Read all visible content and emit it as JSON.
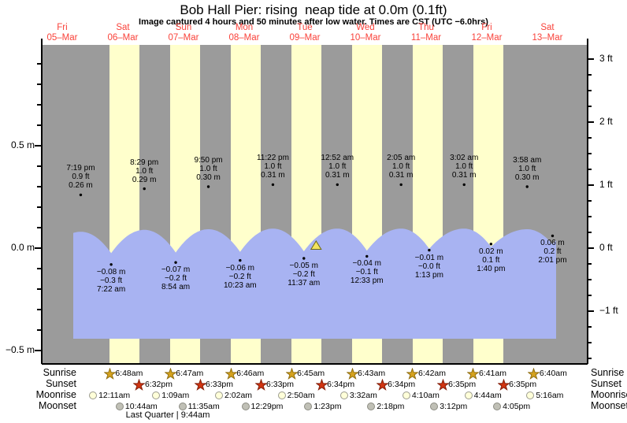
{
  "header": {
    "title": "Bob Hall Pier: rising  neap tide at 0.0m (0.1ft)",
    "subtitle": "Image captured 4 hours and 50 minutes after low water. Times are CST (UTC −6.0hrs)"
  },
  "days": [
    {
      "dow": "Fri",
      "date": "05–Mar"
    },
    {
      "dow": "Sat",
      "date": "06–Mar"
    },
    {
      "dow": "Sun",
      "date": "07–Mar"
    },
    {
      "dow": "Mon",
      "date": "08–Mar"
    },
    {
      "dow": "Tue",
      "date": "09–Mar"
    },
    {
      "dow": "Wed",
      "date": "10–Mar"
    },
    {
      "dow": "Thu",
      "date": "11–Mar"
    },
    {
      "dow": "Fri",
      "date": "12–Mar"
    },
    {
      "dow": "Sat",
      "date": "13–Mar"
    }
  ],
  "axis": {
    "left_labels": [
      {
        "text": "0.5 m",
        "m": 0.5
      },
      {
        "text": "0.0 m",
        "m": 0.0
      },
      {
        "text": "−0.5 m",
        "m": -0.5
      }
    ],
    "right_labels": [
      {
        "text": "3 ft",
        "ft": 3
      },
      {
        "text": "2 ft",
        "ft": 2
      },
      {
        "text": "1 ft",
        "ft": 1
      },
      {
        "text": "0 ft",
        "ft": 0
      },
      {
        "text": "−1 ft",
        "ft": -1
      }
    ]
  },
  "chart_data": {
    "type": "area",
    "title": "Bob Hall Pier: rising  neap tide at 0.0m (0.1ft)",
    "x_axis": "dates 05-Mar to 13-Mar, one band per day, daylight shaded",
    "y_units": [
      "m",
      "ft"
    ],
    "ylim_m": [
      -0.58,
      1.0
    ],
    "highs": [
      {
        "day": 0,
        "time": "7:19 pm",
        "ft_label": "0.9 ft",
        "m_label": "0.26 m",
        "m": 0.26,
        "hour": 19.317
      },
      {
        "day": 1,
        "time": "8:29 pm",
        "ft_label": "1.0 ft",
        "m_label": "0.29 m",
        "m": 0.29,
        "hour": 20.483
      },
      {
        "day": 2,
        "time": "9:50 pm",
        "ft_label": "1.0 ft",
        "m_label": "0.30 m",
        "m": 0.3,
        "hour": 21.833
      },
      {
        "day": 3,
        "time": "11:22 pm",
        "ft_label": "1.0 ft",
        "m_label": "0.31 m",
        "m": 0.31,
        "hour": 23.367
      },
      {
        "day": 5,
        "time": "12:52 am",
        "ft_label": "1.0 ft",
        "m_label": "0.31 m",
        "m": 0.31,
        "hour": 0.867
      },
      {
        "day": 6,
        "time": "2:05 am",
        "ft_label": "1.0 ft",
        "m_label": "0.31 m",
        "m": 0.31,
        "hour": 2.083
      },
      {
        "day": 7,
        "time": "3:02 am",
        "ft_label": "1.0 ft",
        "m_label": "0.31 m",
        "m": 0.31,
        "hour": 3.033
      },
      {
        "day": 8,
        "time": "3:58 am",
        "ft_label": "1.0 ft",
        "m_label": "0.30 m",
        "m": 0.3,
        "hour": 3.967
      }
    ],
    "lows": [
      {
        "day": 1,
        "time": "7:22 am",
        "m_label": "−0.08 m",
        "ft_label": "−0.3 ft",
        "m": -0.08,
        "hour": 7.367
      },
      {
        "day": 2,
        "time": "8:54 am",
        "m_label": "−0.07 m",
        "ft_label": "−0.2 ft",
        "m": -0.07,
        "hour": 8.9
      },
      {
        "day": 3,
        "time": "10:23 am",
        "m_label": "−0.06 m",
        "ft_label": "−0.2 ft",
        "m": -0.06,
        "hour": 10.383
      },
      {
        "day": 4,
        "time": "11:37 am",
        "m_label": "−0.05 m",
        "ft_label": "−0.2 ft",
        "m": -0.05,
        "hour": 11.617
      },
      {
        "day": 5,
        "time": "12:33 pm",
        "m_label": "−0.04 m",
        "ft_label": "−0.1 ft",
        "m": -0.04,
        "hour": 12.55
      },
      {
        "day": 6,
        "time": "1:13 pm",
        "m_label": "−0.01 m",
        "ft_label": "−0.0 ft",
        "m": -0.01,
        "hour": 13.217
      },
      {
        "day": 7,
        "time": "1:40 pm",
        "m_label": "0.02 m",
        "ft_label": "0.1 ft",
        "m": 0.02,
        "hour": 13.667
      },
      {
        "day": 8,
        "time": "2:01 pm",
        "m_label": "0.06 m",
        "ft_label": "0.2 ft",
        "m": 0.06,
        "hour": 14.017
      }
    ],
    "current": {
      "m": 0.0,
      "day": 4,
      "hour": 16.45
    }
  },
  "astro": {
    "rows": [
      {
        "label": "Sunrise",
        "icon": "sunrise-star",
        "events": [
          {
            "day": 1,
            "time": "6:48am",
            "hour": 6.8
          },
          {
            "day": 2,
            "time": "6:47am",
            "hour": 6.783
          },
          {
            "day": 3,
            "time": "6:46am",
            "hour": 6.767
          },
          {
            "day": 4,
            "time": "6:45am",
            "hour": 6.75
          },
          {
            "day": 5,
            "time": "6:43am",
            "hour": 6.717
          },
          {
            "day": 6,
            "time": "6:42am",
            "hour": 6.7
          },
          {
            "day": 7,
            "time": "6:41am",
            "hour": 6.683
          },
          {
            "day": 8,
            "time": "6:40am",
            "hour": 6.667
          }
        ]
      },
      {
        "label": "Sunset",
        "icon": "sunset-star",
        "events": [
          {
            "day": 1,
            "time": "6:32pm",
            "hour": 18.533
          },
          {
            "day": 2,
            "time": "6:33pm",
            "hour": 18.55
          },
          {
            "day": 3,
            "time": "6:33pm",
            "hour": 18.55
          },
          {
            "day": 4,
            "time": "6:34pm",
            "hour": 18.567
          },
          {
            "day": 5,
            "time": "6:34pm",
            "hour": 18.567
          },
          {
            "day": 6,
            "time": "6:35pm",
            "hour": 18.583
          },
          {
            "day": 7,
            "time": "6:35pm",
            "hour": 18.583
          }
        ]
      },
      {
        "label": "Moonrise",
        "icon": "moonrise-circle",
        "events": [
          {
            "day": 1,
            "time": "12:11am",
            "hour": 0.183
          },
          {
            "day": 2,
            "time": "1:09am",
            "hour": 1.15
          },
          {
            "day": 3,
            "time": "2:02am",
            "hour": 2.033
          },
          {
            "day": 4,
            "time": "2:50am",
            "hour": 2.833
          },
          {
            "day": 5,
            "time": "3:32am",
            "hour": 3.533
          },
          {
            "day": 6,
            "time": "4:10am",
            "hour": 4.167
          },
          {
            "day": 7,
            "time": "4:44am",
            "hour": 4.733
          },
          {
            "day": 8,
            "time": "5:16am",
            "hour": 5.267
          }
        ]
      },
      {
        "label": "Moonset",
        "icon": "moonset-circle",
        "events": [
          {
            "day": 1,
            "time": "10:44am",
            "hour": 10.733
          },
          {
            "day": 2,
            "time": "11:35am",
            "hour": 11.583
          },
          {
            "day": 3,
            "time": "12:29pm",
            "hour": 12.483
          },
          {
            "day": 4,
            "time": "1:23pm",
            "hour": 13.383
          },
          {
            "day": 5,
            "time": "2:18pm",
            "hour": 14.3
          },
          {
            "day": 6,
            "time": "3:12pm",
            "hour": 15.2
          },
          {
            "day": 7,
            "time": "4:05pm",
            "hour": 16.083
          }
        ]
      }
    ],
    "footer": "Last Quarter | 9:44am"
  },
  "colors": {
    "night_band": "#9b9b9b",
    "day_band": "#ffffcc",
    "water": "#a8b3f2",
    "day_label": "#f9423a",
    "sunrise_star": "#d6a31e",
    "sunrise_star_edge": "#8f6e10",
    "sunset_star": "#d23511",
    "sunset_star_edge": "#811d09",
    "moonrise_fill": "#ffffd9",
    "moonrise_edge": "#9a9a8e",
    "moonset_fill": "#c0c0b6",
    "moonset_edge": "#8b8b82",
    "marker_dot": "#000000",
    "current_triangle": "#f2e35f"
  }
}
